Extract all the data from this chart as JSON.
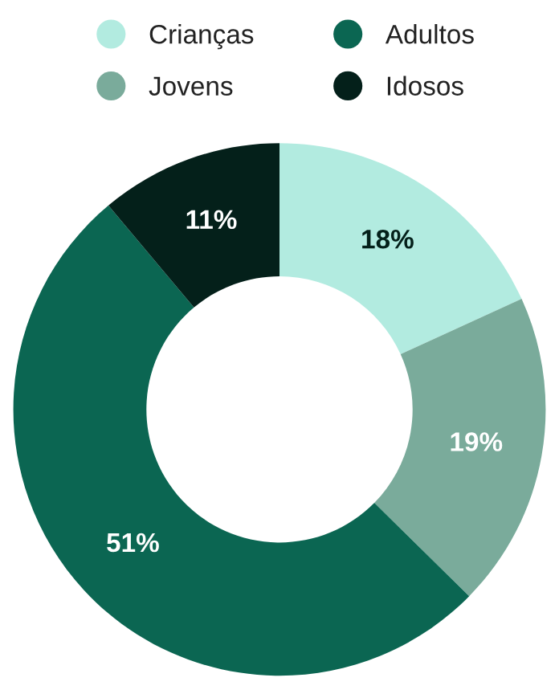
{
  "chart_data": {
    "type": "donut",
    "categories": [
      "Crianças",
      "Jovens",
      "Adultos",
      "Idosos"
    ],
    "values": [
      18,
      19,
      51,
      11
    ],
    "colors": [
      "#b2ebe0",
      "#7aab9b",
      "#0b6652",
      "#04201a"
    ],
    "value_labels": [
      "18%",
      "19%",
      "51%",
      "11%"
    ],
    "legend": "top"
  }
}
